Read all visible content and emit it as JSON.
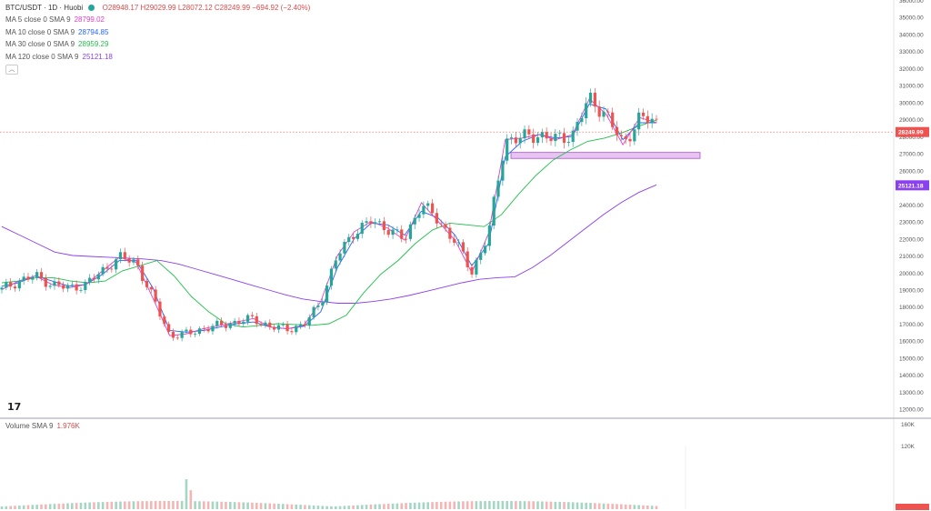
{
  "header": {
    "symbol": "BTC/USDT · 1D · Huobi",
    "ohlc": "O28948.17 H29029.99 L28072.12 C28249.99 −694.92 (−2.40%)",
    "status_dot_color": "#26a69a"
  },
  "legend": [
    {
      "label": "MA 5 close 0 SMA 9",
      "value": "28799.02",
      "color": "#e040c8"
    },
    {
      "label": "MA 10 close 0 SMA 9",
      "value": "28794.85",
      "color": "#2962ff"
    },
    {
      "label": "MA 30 close 0 SMA 9",
      "value": "28959.29",
      "color": "#21c04a"
    },
    {
      "label": "MA 120 close 0 SMA 9",
      "value": "25121.18",
      "color": "#8a3ff0"
    }
  ],
  "volume_legend": {
    "label": "Volume SMA 9",
    "value": "1.976K"
  },
  "logo_text": "17",
  "price_tags": {
    "last": "28249.99",
    "ma120": "25121.18"
  },
  "chart_data": {
    "type": "line",
    "title": "BTC/USDT · 1D · Huobi",
    "price_axis": {
      "ylim": [
        11500,
        36000
      ],
      "ticks": [
        "36000.00",
        "35000.00",
        "34000.00",
        "33000.00",
        "32000.00",
        "31000.00",
        "30000.00",
        "29000.00",
        "28000.00",
        "27000.00",
        "26000.00",
        "25000.00",
        "24000.00",
        "23000.00",
        "22000.00",
        "21000.00",
        "20000.00",
        "19000.00",
        "18000.00",
        "17000.00",
        "16000.00",
        "15000.00",
        "14000.00",
        "13000.00",
        "12000.00"
      ]
    },
    "volume_axis": {
      "ticks": [
        "160K",
        "120K"
      ]
    },
    "last_price": 28249.99,
    "zone": {
      "low": 26700,
      "high": 27050
    },
    "series": [
      {
        "name": "MA 120 close 0 SMA 9",
        "key": "ma120",
        "values": [
          22700,
          22200,
          21700,
          21200,
          21000,
          20950,
          20900,
          20850,
          20800,
          20700,
          20500,
          20200,
          19900,
          19600,
          19300,
          19000,
          18700,
          18450,
          18300,
          18200,
          18200,
          18300,
          18450,
          18650,
          18900,
          19150,
          19400,
          19600,
          19700,
          19750,
          20300,
          21000,
          21800,
          22600,
          23400,
          24100,
          24700,
          25150
        ]
      },
      {
        "name": "MA 30 close 0 SMA 9",
        "key": "ma30",
        "values": [
          19400,
          19500,
          19700,
          19700,
          19500,
          19400,
          19500,
          20100,
          20400,
          20700,
          19800,
          18600,
          17700,
          17000,
          16800,
          16900,
          17000,
          16950,
          16900,
          17000,
          17500,
          18800,
          19900,
          20700,
          21700,
          22500,
          22900,
          22800,
          22700,
          23400,
          24600,
          25700,
          26600,
          27200,
          27700,
          27900,
          28200,
          28600,
          28950
        ]
      },
      {
        "name": "MA 10 close 0 SMA 9",
        "key": "ma10",
        "values": [
          19200,
          19400,
          19800,
          19500,
          19200,
          19300,
          19900,
          20700,
          20700,
          19100,
          16600,
          16500,
          16600,
          16800,
          17000,
          17100,
          16800,
          16700,
          16850,
          17700,
          20300,
          22000,
          22900,
          22800,
          22200,
          23600,
          23200,
          22200,
          20400,
          21700,
          26800,
          27700,
          28100,
          27900,
          28000,
          29900,
          29600,
          27800,
          28800,
          28790
        ]
      },
      {
        "name": "MA 5 close 0 SMA 9",
        "key": "ma5",
        "values": [
          19000,
          19500,
          19800,
          19300,
          19100,
          19300,
          20100,
          20900,
          20600,
          18500,
          16300,
          16400,
          16700,
          16900,
          17100,
          17300,
          16800,
          16700,
          16900,
          18300,
          21000,
          22400,
          23000,
          22600,
          21900,
          24100,
          23000,
          21900,
          20000,
          22300,
          27800,
          27900,
          28100,
          27800,
          28100,
          30200,
          29300,
          27500,
          29100,
          28800
        ]
      }
    ]
  }
}
